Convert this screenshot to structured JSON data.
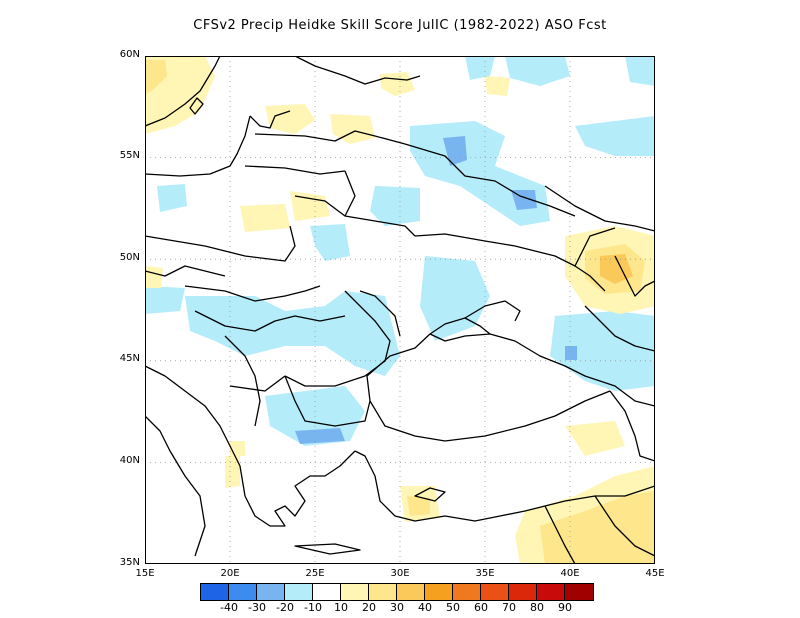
{
  "title": "CFSv2 Precip Heidke Skill Score JulIC (1982-2022) ASO Fcst",
  "y_ticks": [
    "60N",
    "55N",
    "50N",
    "45N",
    "40N",
    "35N"
  ],
  "x_ticks": [
    "15E",
    "20E",
    "25E",
    "30E",
    "35E",
    "40E",
    "45E"
  ],
  "map": {
    "lon_range": [
      15,
      45
    ],
    "lat_range": [
      35,
      60
    ],
    "graticule": "dotted",
    "field": "Heidke Skill Score",
    "colors": {
      "neg40": "#1e64e6",
      "neg30": "#3c8cf0",
      "neg20": "#78b4f0",
      "neg10": "#b4ecfa",
      "zero": "#ffffff",
      "pos10": "#fff5b4",
      "pos20": "#fde68c",
      "pos30": "#fbc85a",
      "pos40": "#f5a01e",
      "pos50": "#f0781e",
      "pos60": "#eb5014",
      "pos70": "#dc280a",
      "pos80": "#c80a0a",
      "pos90": "#a00000"
    }
  },
  "legend": {
    "labels": [
      "-40",
      "-30",
      "-20",
      "-10",
      "10",
      "20",
      "30",
      "40",
      "50",
      "60",
      "70",
      "80",
      "90"
    ],
    "colors": [
      "#1e64e6",
      "#3c8cf0",
      "#78b4f0",
      "#b4ecfa",
      "#ffffff",
      "#fff5b4",
      "#fde68c",
      "#fbc85a",
      "#f5a01e",
      "#f0781e",
      "#eb5014",
      "#dc280a",
      "#c80a0a",
      "#a00000"
    ]
  }
}
